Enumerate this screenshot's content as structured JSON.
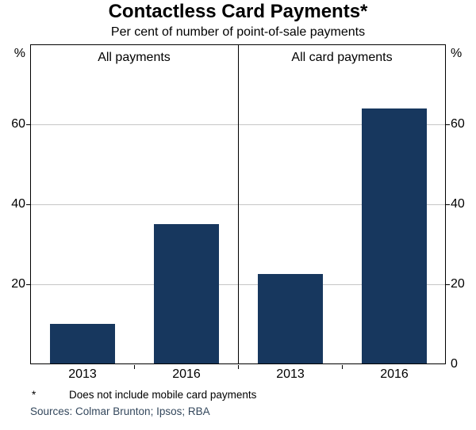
{
  "chart_data": {
    "type": "bar",
    "title": "Contactless Card Payments*",
    "subtitle": "Per cent of number of point-of-sale payments",
    "unit": "%",
    "ylim": [
      0,
      80
    ],
    "yticks": [
      20,
      40,
      60
    ],
    "grid": true,
    "legend": "none",
    "panels": [
      {
        "label": "All payments",
        "categories": [
          "2013",
          "2016"
        ],
        "values": [
          10,
          35
        ]
      },
      {
        "label": "All card payments",
        "categories": [
          "2013",
          "2016"
        ],
        "values": [
          22.5,
          64
        ]
      }
    ],
    "y_axis_left_labels": [
      "%",
      "60",
      "40",
      "20"
    ],
    "y_axis_right_labels": [
      "%",
      "60",
      "40",
      "20",
      "0"
    ],
    "colors": {
      "bar": "#17375E",
      "gridline": "#c6c6c6",
      "axis": "#000000",
      "sources_text": "#33475c"
    },
    "footnote_marker": "*",
    "footnote": "Does not include mobile card payments",
    "sources": "Sources: Colmar Brunton; Ipsos; RBA"
  }
}
